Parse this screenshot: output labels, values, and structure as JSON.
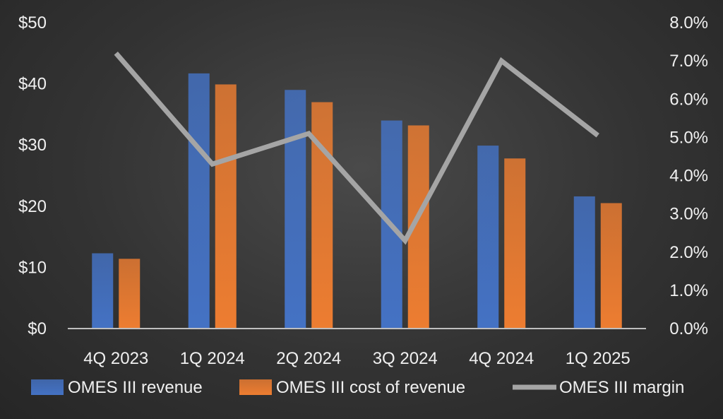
{
  "chart_data": {
    "type": "bar",
    "categories": [
      "4Q 2023",
      "1Q 2024",
      "2Q 2024",
      "3Q 2024",
      "4Q 2024",
      "1Q 2025"
    ],
    "series": [
      {
        "name": "OMES III revenue",
        "kind": "bar",
        "axis": "left",
        "color": "#4472c4",
        "values": [
          12.3,
          41.7,
          39.0,
          34.0,
          29.9,
          21.6
        ]
      },
      {
        "name": "OMES III cost of revenue",
        "kind": "bar",
        "axis": "left",
        "color": "#ed7d31",
        "values": [
          11.4,
          39.9,
          37.0,
          33.2,
          27.8,
          20.5
        ]
      },
      {
        "name": "OMES III margin",
        "kind": "line",
        "axis": "right",
        "color": "#a5a5a5",
        "values": [
          7.2,
          4.3,
          5.1,
          2.3,
          7.0,
          5.05
        ]
      }
    ],
    "y_left": {
      "min": 0,
      "max": 50,
      "step": 10,
      "tick_labels": [
        "$0",
        "$10",
        "$20",
        "$30",
        "$40",
        "$50"
      ]
    },
    "y_right": {
      "min": 0,
      "max": 8,
      "step": 1,
      "tick_labels": [
        "0.0%",
        "1.0%",
        "2.0%",
        "3.0%",
        "4.0%",
        "5.0%",
        "6.0%",
        "7.0%",
        "8.0%"
      ]
    },
    "grid": false,
    "legend": {
      "position": "bottom"
    }
  }
}
